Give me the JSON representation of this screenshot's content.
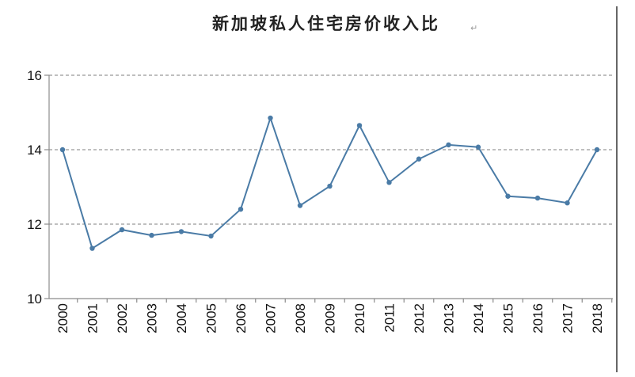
{
  "chart_data": {
    "type": "line",
    "title": "新加坡私人住宅房价收入比",
    "title_mark": "↵",
    "xlabel": "",
    "ylabel": "",
    "x": [
      "2000",
      "2001",
      "2002",
      "2003",
      "2004",
      "2005",
      "2006",
      "2007",
      "2008",
      "2009",
      "2010",
      "2011",
      "2012",
      "2013",
      "2014",
      "2015",
      "2016",
      "2017",
      "2018"
    ],
    "series": [
      {
        "values": [
          14.0,
          11.35,
          11.85,
          11.7,
          11.8,
          11.68,
          12.4,
          14.85,
          12.5,
          13.02,
          14.65,
          13.12,
          13.75,
          14.13,
          14.07,
          12.75,
          12.7,
          12.57,
          14.0
        ],
        "color": "#4a7ba6"
      }
    ],
    "ylim": [
      10,
      16
    ],
    "yticks": [
      "10",
      "12",
      "14",
      "16"
    ],
    "grid": true,
    "legend": "none"
  }
}
